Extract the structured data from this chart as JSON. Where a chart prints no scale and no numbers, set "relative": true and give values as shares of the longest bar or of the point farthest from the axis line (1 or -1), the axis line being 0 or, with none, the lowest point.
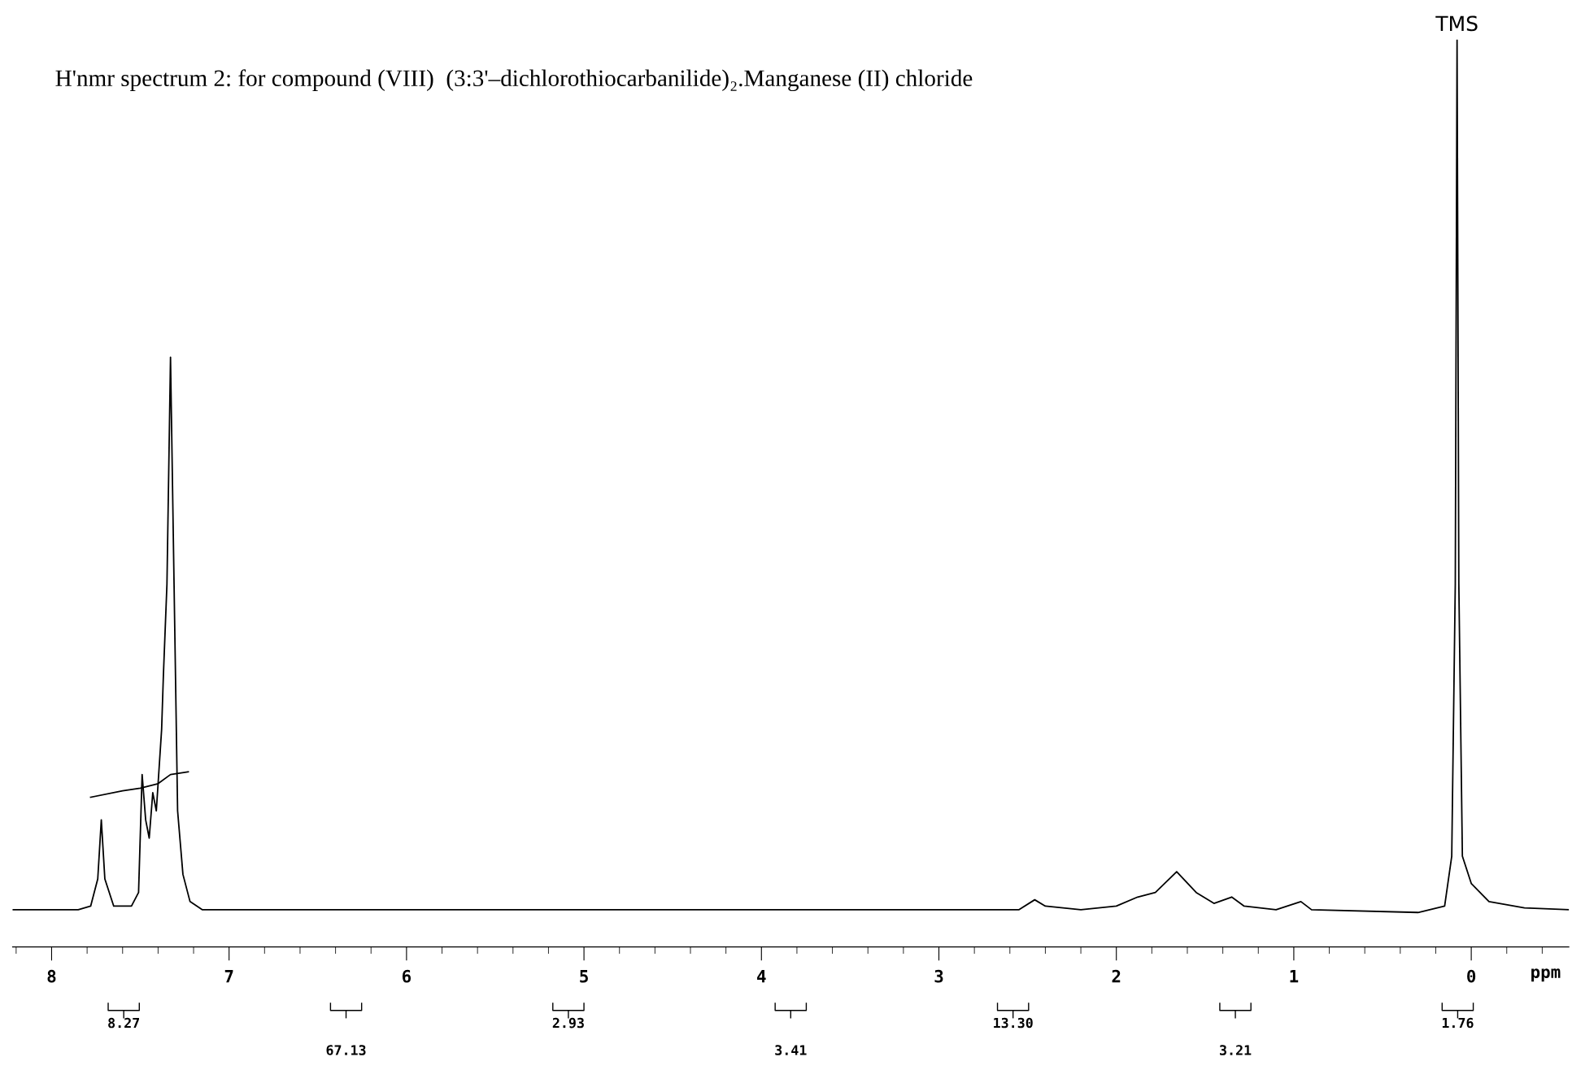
{
  "chart_data": {
    "type": "line",
    "relative": true,
    "title": "H'nmr spectrum 2: for compound (VIII)  (3:3'–dichlorothiocarbanilide)₂.Manganese (II) chloride",
    "xlabel": "ppm",
    "xlim": [
      8.22,
      -0.55
    ],
    "xticks": [
      8,
      7,
      6,
      5,
      4,
      3,
      2,
      1,
      0
    ],
    "grid": false,
    "legend": false,
    "series": [
      {
        "color": "#000000",
        "x": [
          8.22,
          7.85,
          7.78,
          7.74,
          7.72,
          7.7,
          7.65,
          7.55,
          7.51,
          7.49,
          7.47,
          7.45,
          7.43,
          7.41,
          7.38,
          7.37,
          7.35,
          7.33,
          7.31,
          7.29,
          7.26,
          7.22,
          7.15,
          2.55,
          2.46,
          2.4,
          2.2,
          2.0,
          1.88,
          1.78,
          1.66,
          1.55,
          1.45,
          1.35,
          1.28,
          1.1,
          0.96,
          0.9,
          0.3,
          0.15,
          0.11,
          0.09,
          0.08,
          0.07,
          0.05,
          0.0,
          -0.1,
          -0.3,
          -0.55
        ],
        "values": [
          0.041,
          0.041,
          0.045,
          0.075,
          0.14,
          0.075,
          0.045,
          0.045,
          0.06,
          0.19,
          0.14,
          0.12,
          0.17,
          0.15,
          0.24,
          0.3,
          0.4,
          0.65,
          0.4,
          0.15,
          0.08,
          0.05,
          0.041,
          0.041,
          0.052,
          0.045,
          0.041,
          0.045,
          0.055,
          0.06,
          0.083,
          0.06,
          0.048,
          0.055,
          0.045,
          0.041,
          0.05,
          0.041,
          0.038,
          0.045,
          0.1,
          0.4,
          1.0,
          0.4,
          0.1,
          0.07,
          0.05,
          0.043,
          0.041
        ]
      },
      {
        "color": "#000000",
        "x": [
          7.78,
          7.6,
          7.5,
          7.4,
          7.33,
          7.23
        ],
        "values": [
          0.165,
          0.172,
          0.175,
          0.18,
          0.19,
          0.193
        ]
      }
    ],
    "annotations": [
      {
        "text": "TMS",
        "x": 0.08,
        "y": 1.0
      },
      "8.27",
      "67.13",
      "2.93",
      "3.41",
      "13.30",
      "3.21",
      "1.76"
    ]
  }
}
